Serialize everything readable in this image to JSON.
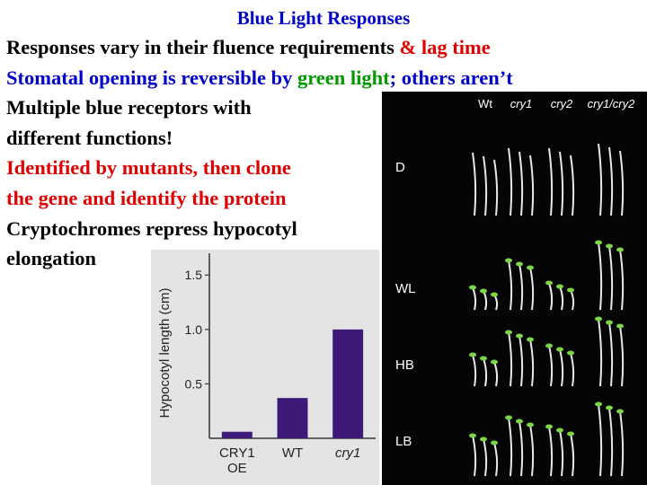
{
  "slide": {
    "title": "Blue Light Responses",
    "lines": [
      [
        {
          "text": "Responses vary in their fluence requirements ",
          "color": "#000000"
        },
        {
          "text": "& lag time",
          "color": "#e00000"
        }
      ],
      [
        {
          "text": "Stomatal opening is reversible by ",
          "color": "#0000cc"
        },
        {
          "text": "green light",
          "color": "#009900"
        },
        {
          "text": "; others aren’t",
          "color": "#0000cc"
        }
      ],
      [
        {
          "text": "Multiple blue receptors with",
          "color": "#000000"
        }
      ],
      [
        {
          "text": "different functions!",
          "color": "#000000"
        }
      ],
      [
        {
          "text": "Identified by mutants, then clone",
          "color": "#e00000"
        }
      ],
      [
        {
          "text": "the gene and identify the protein",
          "color": "#e00000"
        }
      ],
      [
        {
          "text": "Cryptochromes repress hypocotyl",
          "color": "#000000"
        }
      ],
      [
        {
          "text": "elongation",
          "color": "#000000"
        }
      ]
    ]
  },
  "photo": {
    "columns": [
      "Wt",
      "cry1",
      "cry2",
      "cry1/cry2"
    ],
    "rows": [
      "D",
      "WL",
      "HB",
      "LB"
    ]
  },
  "chart_data": {
    "type": "bar",
    "ylabel": "Hypocotyl length (cm)",
    "categories": [
      "CRY1 OE",
      "WT",
      "cry1"
    ],
    "values": [
      0.06,
      0.37,
      1.0
    ],
    "color": "#3d1a78",
    "ylim": [
      0,
      1.7
    ],
    "yticks": [
      0.5,
      {
        "value": 1.0,
        "label": "1.0"
      },
      1.5
    ]
  }
}
